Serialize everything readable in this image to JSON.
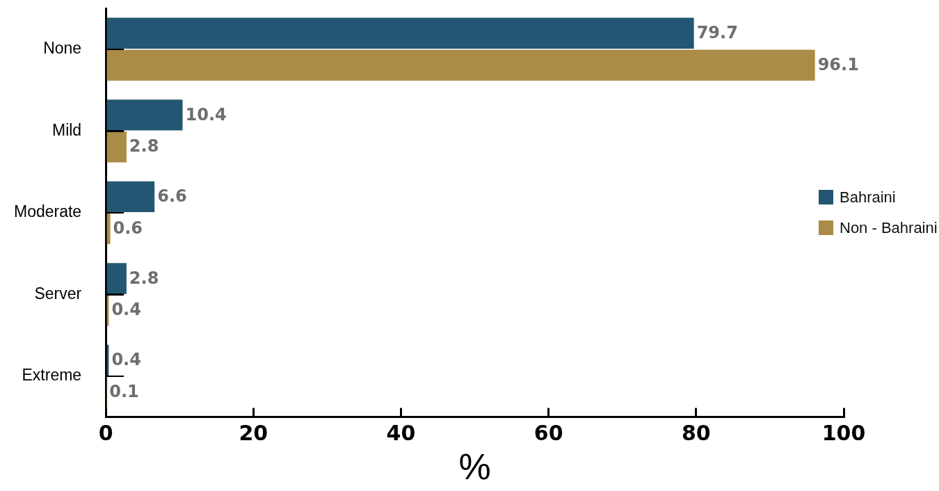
{
  "chart_data": {
    "type": "bar",
    "orientation": "horizontal",
    "categories": [
      "None",
      "Mild",
      "Moderate",
      "Server",
      "Extreme"
    ],
    "series": [
      {
        "name": "Bahraini",
        "color": "#235673",
        "values": [
          79.7,
          10.4,
          6.6,
          2.8,
          0.4
        ]
      },
      {
        "name": "Non - Bahraini",
        "color": "#ab8c47",
        "values": [
          96.1,
          2.8,
          0.6,
          0.4,
          0.1
        ]
      }
    ],
    "xlabel": "%",
    "xlim": [
      0,
      100
    ],
    "xticks": [
      0,
      20,
      40,
      60,
      80,
      100
    ],
    "data_labels": true,
    "legend": "right"
  }
}
